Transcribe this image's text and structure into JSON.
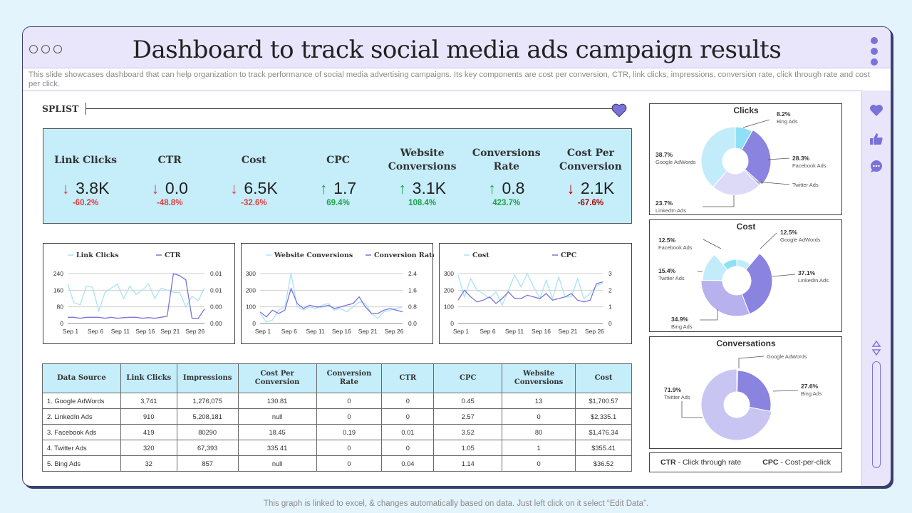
{
  "header": {
    "title": "Dashboard to track social media ads campaign results",
    "subtitle": "This slide showcases dashboard that can help organization to track performance of social media advertising campaigns. Its key components are cost per conversion, CTR, link clicks, impressions, conversion rate, click through rate and cost per click."
  },
  "splist": {
    "label": "SPLIST"
  },
  "kpis": [
    {
      "label1": "Link Clicks",
      "label2": "",
      "value": "3.8K",
      "change": "-60.2%",
      "trend": "down",
      "color": "#e04040"
    },
    {
      "label1": "CTR",
      "label2": "",
      "value": "0.0",
      "change": "-48.8%",
      "trend": "down",
      "color": "#e04040"
    },
    {
      "label1": "Cost",
      "label2": "",
      "value": "6.5K",
      "change": "-32.6%",
      "trend": "down",
      "color": "#e04040"
    },
    {
      "label1": "CPC",
      "label2": "",
      "value": "1.7",
      "change": "69.4%",
      "trend": "up",
      "color": "#1fa34a"
    },
    {
      "label1": "Website",
      "label2": "Conversions",
      "value": "3.1K",
      "change": "108.4%",
      "trend": "up",
      "color": "#1fa34a"
    },
    {
      "label1": "Conversions",
      "label2": "Rate",
      "value": "0.8",
      "change": "423.7%",
      "trend": "up",
      "color": "#1fa34a"
    },
    {
      "label1": "Cost Per",
      "label2": "Conversion",
      "value": "2.1K",
      "change": "-67.6%",
      "trend": "down",
      "color": "#b00000"
    }
  ],
  "chart_data": [
    {
      "type": "line",
      "legend": [
        "Link Clicks",
        "CTR"
      ],
      "x_ticks": [
        "Sep 1",
        "Sep 6",
        "Sep 11",
        "Sep 16",
        "Sep 21",
        "Sep 26"
      ],
      "y_left_ticks": [
        "240",
        "160",
        "80",
        "0"
      ],
      "y_right_ticks": [
        "0.01",
        "0.01",
        "0.00",
        "0.00"
      ],
      "series": [
        {
          "name": "Link Clicks",
          "color": "#a8e3f5",
          "values": [
            190,
            100,
            90,
            180,
            175,
            60,
            150,
            170,
            190,
            120,
            180,
            140,
            160,
            190,
            120,
            170,
            160,
            150,
            150,
            80,
            130,
            110,
            170
          ]
        },
        {
          "name": "CTR",
          "color": "#7b72d9",
          "values": [
            30,
            30,
            25,
            30,
            30,
            30,
            25,
            30,
            25,
            28,
            30,
            30,
            25,
            28,
            25,
            30,
            35,
            240,
            230,
            210,
            25,
            25,
            70
          ]
        }
      ]
    },
    {
      "type": "line",
      "legend": [
        "Website Conversions",
        "Conversion Rate"
      ],
      "x_ticks": [
        "Sep 1",
        "Sep 6",
        "Sep 11",
        "Sep 16",
        "Sep 21",
        "Sep 26"
      ],
      "y_left_ticks": [
        "300",
        "200",
        "100",
        "0"
      ],
      "y_right_ticks": [
        "2.4",
        "1.6",
        "0.8",
        "0.0"
      ],
      "series": [
        {
          "name": "Website Conversions",
          "color": "#a8e3f5",
          "values": [
            60,
            10,
            20,
            80,
            100,
            300,
            100,
            80,
            100,
            90,
            110,
            120,
            80,
            90,
            70,
            100,
            130,
            120,
            60,
            30,
            70,
            80,
            90,
            100
          ]
        },
        {
          "name": "Conversion Rate",
          "color": "#7b72d9",
          "values": [
            70,
            40,
            80,
            60,
            80,
            210,
            120,
            90,
            110,
            100,
            100,
            110,
            90,
            100,
            110,
            120,
            160,
            100,
            60,
            60,
            80,
            90,
            80,
            70
          ]
        }
      ]
    },
    {
      "type": "line",
      "legend": [
        "Cost",
        "CPC"
      ],
      "x_ticks": [
        "Sep 1",
        "Sep 6",
        "Sep 11",
        "Sep 16",
        "Sep 21",
        "Sep 26"
      ],
      "y_left_ticks": [
        "300",
        "200",
        "100",
        "0"
      ],
      "y_right_ticks": [
        "3",
        "2",
        "1",
        "0"
      ],
      "series": [
        {
          "name": "Cost",
          "color": "#a8e3f5",
          "values": [
            290,
            160,
            270,
            200,
            180,
            150,
            190,
            110,
            200,
            290,
            220,
            300,
            220,
            150,
            260,
            150,
            280,
            160,
            160,
            270,
            150,
            180,
            230,
            240
          ]
        },
        {
          "name": "CPC",
          "color": "#7b72d9",
          "values": [
            1.4,
            2.0,
            1.6,
            1.3,
            1.4,
            1.6,
            1.2,
            1.5,
            1.9,
            1.5,
            1.5,
            1.7,
            1.6,
            1.5,
            1.8,
            1.4,
            1.5,
            1.6,
            1.8,
            1.4,
            1.3,
            1.4,
            2.4,
            2.5
          ]
        }
      ]
    },
    {
      "type": "pie",
      "title": "Clicks",
      "slices": [
        {
          "name": "Bing Ads",
          "value": 8.2,
          "label": "8.2%",
          "color": "#8fe0f7"
        },
        {
          "name": "Facebook Ads",
          "value": 28.3,
          "label": "28.3%",
          "color": "#8b83e0"
        },
        {
          "name": "Twitter Ads",
          "value": 1.1,
          "label": "",
          "color": "#b7b2ee"
        },
        {
          "name": "LinkedIn Ads",
          "value": 23.7,
          "label": "23.7%",
          "color": "#dcdaf7"
        },
        {
          "name": "Google AdWords",
          "value": 38.7,
          "label": "38.7%",
          "color": "#c3ecfa"
        }
      ]
    },
    {
      "type": "pie",
      "title": "Cost",
      "slices": [
        {
          "name": "Google AdWords",
          "value": 12.5,
          "label": "12.5%",
          "color": "#c3ecfa"
        },
        {
          "name": "LinkedIn Ads",
          "value": 37.1,
          "label": "37.1%",
          "color": "#8b83e0"
        },
        {
          "name": "Bing Ads",
          "value": 34.9,
          "label": "34.9%",
          "color": "#b7b2ee"
        },
        {
          "name": "Twitter Ads",
          "value": 15.4,
          "label": "15.4%",
          "color": "#c3ecfa"
        },
        {
          "name": "Facebook Ads",
          "value": 12.5,
          "label": "12.5%",
          "color": "#8fe0f7"
        }
      ]
    },
    {
      "type": "pie",
      "title": "Conversations",
      "slices": [
        {
          "name": "Google AdWords",
          "value": 0.5,
          "label": "",
          "color": "#8b83e0"
        },
        {
          "name": "Bing Ads",
          "value": 27.6,
          "label": "27.6%",
          "color": "#8b83e0"
        },
        {
          "name": "Twitter Ads",
          "value": 71.9,
          "label": "71.9%",
          "color": "#c8c5f3"
        }
      ]
    }
  ],
  "pies": {
    "clicks": {
      "title": "Clicks",
      "labels": [
        {
          "pct": "8.2%",
          "name": "Bing Ads"
        },
        {
          "pct": "28.3%",
          "name": "Facebook Ads"
        },
        {
          "pct": "",
          "name": "Twitter Ads"
        },
        {
          "pct": "23.7%",
          "name": "LinkedIn Ads"
        },
        {
          "pct": "38.7%",
          "name": "Google AdWords"
        }
      ]
    },
    "cost": {
      "title": "Cost",
      "labels": [
        {
          "pct": "12.5%",
          "name": "Google AdWords"
        },
        {
          "pct": "37.1%",
          "name": "LinkedIn Ads"
        },
        {
          "pct": "34.9%",
          "name": "Bing Ads"
        },
        {
          "pct": "15.4%",
          "name": "Twitter Ads"
        },
        {
          "pct": "12.5%",
          "name": "Facebook Ads"
        }
      ]
    },
    "conv": {
      "title": "Conversations",
      "labels": [
        {
          "pct": "",
          "name": "Google AdWords"
        },
        {
          "pct": "27.6%",
          "name": "Bing Ads"
        },
        {
          "pct": "71.9%",
          "name": "Twitter Ads"
        }
      ]
    }
  },
  "table": {
    "headers": [
      "Data Source",
      "Link Clicks",
      "Impressions",
      "Cost Per Conversion",
      "Conversion Rate",
      "CTR",
      "CPC",
      "Website Conversions",
      "Cost"
    ],
    "rows": [
      [
        "1. Google AdWords",
        "3,741",
        "1,276,075",
        "130.81",
        "0",
        "0",
        "0.45",
        "13",
        "$1,700.57"
      ],
      [
        "2. LinkedIn Ads",
        "910",
        "5,208,181",
        "null",
        "0",
        "0",
        "2.57",
        "0",
        "$2,335.1"
      ],
      [
        "3. Facebook Ads",
        "419",
        "80290",
        "18.45",
        "0.19",
        "0.01",
        "3.52",
        "80",
        "$1,476.34"
      ],
      [
        "4. Twitter Ads",
        "320",
        "67,393",
        "335.41",
        "0",
        "0",
        "1.05",
        "1",
        "$355.41"
      ],
      [
        "5. Bing Ads",
        "32",
        "857",
        "null",
        "0",
        "0.04",
        "1.14",
        "0",
        "$36.52"
      ]
    ]
  },
  "legend_box": {
    "ctr_abbr": "CTR",
    "ctr_text": " - Click through rate",
    "cpc_abbr": "CPC",
    "cpc_text": " - Cost-per-click"
  },
  "footer": "This graph is linked to excel, & changes automatically based on data. Just left click on it select “Edit Data”."
}
